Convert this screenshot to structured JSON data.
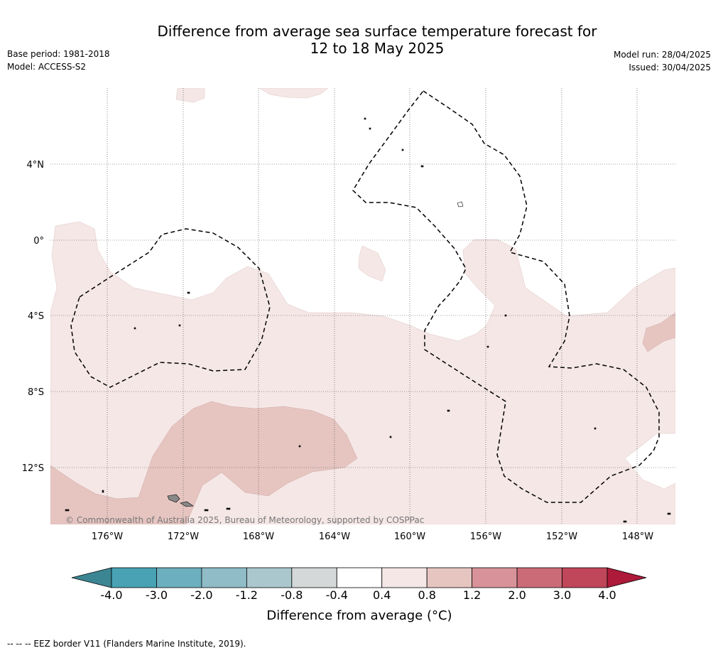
{
  "title_line1": "Difference from average sea surface temperature forecast for",
  "title_line2": "12 to 18 May 2025",
  "base_period": "Base period: 1981-2018",
  "model": "Model: ACCESS-S2",
  "model_run": "Model run: 28/04/2025",
  "issued": "Issued: 30/04/2025",
  "copyright": "© Commonwealth of Australia 2025, Bureau of Meteorology, supported by COSPPac",
  "lon_labels": [
    "176°W",
    "172°W",
    "168°W",
    "164°W",
    "160°W",
    "156°W",
    "152°W",
    "148°W"
  ],
  "lat_labels": [
    "4°N",
    "0°",
    "4°S",
    "8°S",
    "12°S"
  ],
  "colorbar": {
    "ticks": [
      "-4.0",
      "-3.0",
      "-2.0",
      "-1.2",
      "-0.8",
      "-0.4",
      "0.4",
      "0.8",
      "1.2",
      "2.0",
      "3.0",
      "4.0"
    ],
    "colors": [
      "#48a2b4",
      "#6cafbe",
      "#8fbcc7",
      "#aac7cd",
      "#d4d8d8",
      "#ffffff",
      "#f5e7e6",
      "#e6c5c1",
      "#d8939a",
      "#cb6b78",
      "#c04659"
    ],
    "under_color": "#3c8593",
    "over_color": "#ad1a3a",
    "title": "Difference from average (°C)"
  },
  "footnote": "--  --  -- EEZ border V11 (Flanders Marine Institute, 2019)."
}
